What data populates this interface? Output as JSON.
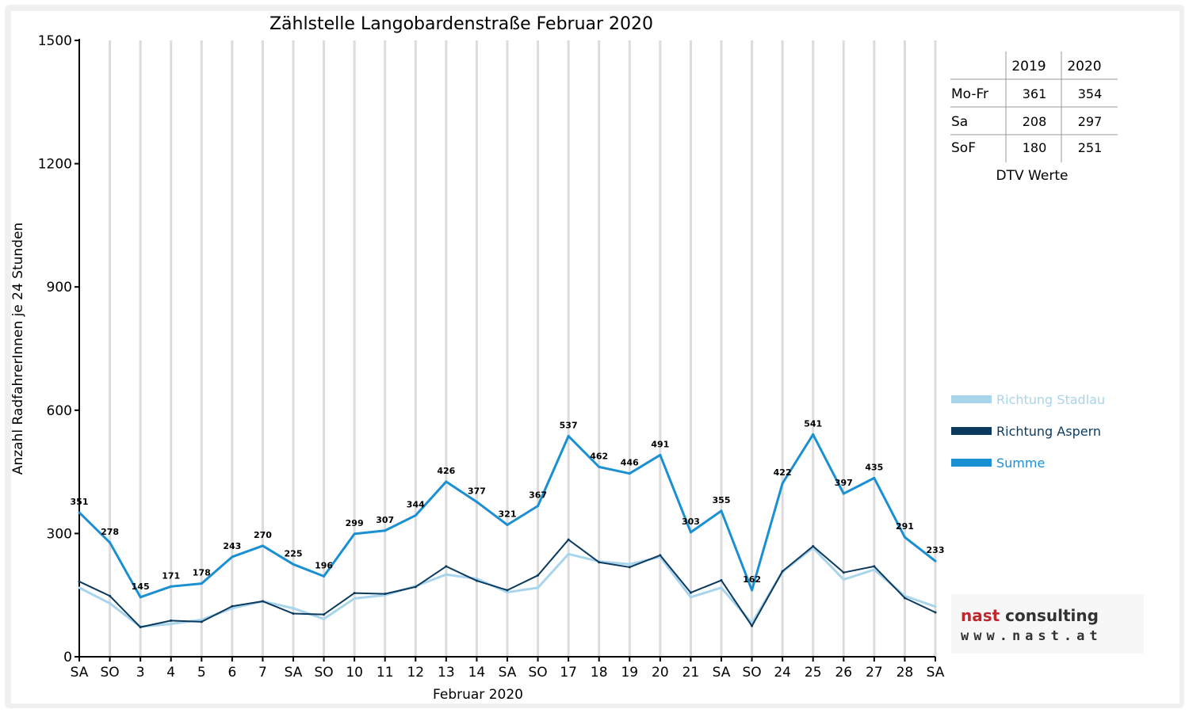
{
  "chart_data": {
    "type": "line",
    "title": "Zählstelle Langobardenstraße Februar 2020",
    "xlabel": "Februar 2020",
    "ylabel": "Anzahl RadfahrerInnen je 24 Stunden",
    "ylim": [
      0,
      1500
    ],
    "yticks": [
      0,
      300,
      600,
      900,
      1200,
      1500
    ],
    "grid": true,
    "legend_position": "right",
    "categories": [
      "SA",
      "SO",
      "3",
      "4",
      "5",
      "6",
      "7",
      "SA",
      "SO",
      "10",
      "11",
      "12",
      "13",
      "14",
      "SA",
      "SO",
      "17",
      "18",
      "19",
      "20",
      "21",
      "SA",
      "SO",
      "24",
      "25",
      "26",
      "27",
      "28",
      "SA"
    ],
    "category_colors": [
      "#000000",
      "#e00000",
      "#000000",
      "#000000",
      "#000000",
      "#000000",
      "#000000",
      "#000000",
      "#e00000",
      "#000000",
      "#000000",
      "#000000",
      "#000000",
      "#000000",
      "#000000",
      "#e00000",
      "#000000",
      "#000000",
      "#000000",
      "#000000",
      "#000000",
      "#000000",
      "#e00000",
      "#000000",
      "#000000",
      "#000000",
      "#000000",
      "#000000",
      "#000000"
    ],
    "series": [
      {
        "name": "Richtung Stadlau",
        "color": "#a8d4ec",
        "values": [
          168,
          130,
          73,
          80,
          90,
          118,
          135,
          118,
          92,
          142,
          150,
          172,
          200,
          190,
          157,
          168,
          250,
          232,
          225,
          243,
          145,
          168,
          82,
          207,
          265,
          188,
          212,
          148,
          122
        ]
      },
      {
        "name": "Richtung Aspern",
        "color": "#0b3a5e",
        "values": [
          183,
          148,
          72,
          88,
          85,
          123,
          135,
          105,
          103,
          155,
          153,
          170,
          220,
          185,
          162,
          198,
          285,
          230,
          218,
          247,
          156,
          186,
          75,
          208,
          269,
          205,
          220,
          143,
          108
        ]
      },
      {
        "name": "Summe",
        "color": "#1a90d3",
        "values": [
          351,
          278,
          145,
          171,
          178,
          243,
          270,
          225,
          196,
          299,
          307,
          344,
          426,
          377,
          321,
          367,
          537,
          462,
          446,
          491,
          303,
          355,
          162,
          422,
          541,
          397,
          435,
          291,
          233
        ]
      }
    ],
    "data_labels": [
      "351",
      "278",
      "145",
      "171",
      "178",
      "243",
      "270",
      "225",
      "196",
      "299",
      "307",
      "344",
      "426",
      "377",
      "321",
      "367",
      "537",
      "462",
      "446",
      "491",
      "303",
      "355",
      "162",
      "422",
      "541",
      "397",
      "435",
      "291",
      "233"
    ]
  },
  "dtv_table": {
    "header": [
      "",
      "2019",
      "2020"
    ],
    "rows": [
      {
        "label": "Mo-Fr",
        "v2019": "361",
        "v2020": "354"
      },
      {
        "label": "Sa",
        "v2019": "208",
        "v2020": "297"
      },
      {
        "label": "SoF",
        "v2019": "180",
        "v2020": "251"
      }
    ],
    "caption": "DTV Werte"
  },
  "logo": {
    "brand_part1": "nast",
    "brand_part2": " consulting",
    "url": "www.nast.at",
    "brand_color1": "#c0282d",
    "brand_color2": "#333333"
  }
}
